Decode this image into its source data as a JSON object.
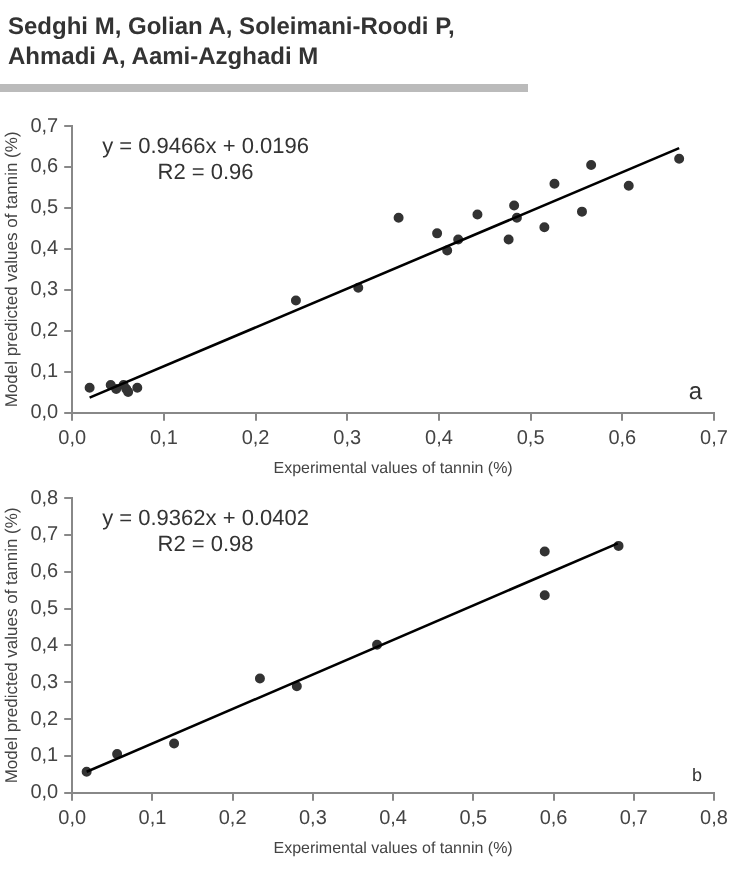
{
  "chart_data": [
    {
      "type": "scatter",
      "title": "Sedghi M, Golian A, Soleimani-Roodi P, Ahmadi A, Aami-Azghadi M",
      "xlabel": "Experimental values of tannin (%)",
      "ylabel": "Model predicted values of tannin (%)",
      "annotations": [
        "y = 0.9466x + 0.0196",
        "R2 = 0.96",
        "a"
      ],
      "grid": false,
      "legend": false,
      "xlim": [
        0,
        0.7
      ],
      "xticks": [
        {
          "value": 0,
          "label": "0,0"
        },
        {
          "value": 0.1,
          "label": "0,1"
        },
        {
          "value": 0.2,
          "label": "0,2"
        },
        {
          "value": 0.3,
          "label": "0,3"
        },
        {
          "value": 0.4,
          "label": "0,4"
        },
        {
          "value": 0.5,
          "label": "0,5"
        },
        {
          "value": 0.6,
          "label": "0,6"
        },
        {
          "value": 0.7,
          "label": "0,7"
        }
      ],
      "ylim": [
        0,
        0.7
      ],
      "yticks": [
        {
          "value": 0,
          "label": "0,0"
        },
        {
          "value": 0.1,
          "label": "0,1"
        },
        {
          "value": 0.2,
          "label": "0,2"
        },
        {
          "value": 0.3,
          "label": "0,3"
        },
        {
          "value": 0.4,
          "label": "0,4"
        },
        {
          "value": 0.5,
          "label": "0,5"
        },
        {
          "value": 0.6,
          "label": "0,6"
        },
        {
          "value": 0.7,
          "label": "0,7"
        }
      ],
      "series": [
        {
          "type": "scatter",
          "marker": "circle",
          "color": "#333333",
          "x": [
            0.019,
            0.042,
            0.048,
            0.056,
            0.059,
            0.061,
            0.071,
            0.244,
            0.312,
            0.356,
            0.398,
            0.409,
            0.421,
            0.442,
            0.476,
            0.482,
            0.485,
            0.515,
            0.526,
            0.556,
            0.566,
            0.607,
            0.662
          ],
          "values": [
            0.061,
            0.068,
            0.058,
            0.068,
            0.058,
            0.051,
            0.061,
            0.274,
            0.305,
            0.476,
            0.438,
            0.396,
            0.423,
            0.484,
            0.423,
            0.506,
            0.476,
            0.453,
            0.559,
            0.491,
            0.605,
            0.554,
            0.62
          ]
        },
        {
          "type": "line",
          "marker": "none",
          "color": "#000000",
          "x": [
            0.019,
            0.662
          ],
          "values": [
            0.037,
            0.646
          ]
        }
      ]
    },
    {
      "type": "scatter",
      "xlabel": "Experimental values of tannin (%)",
      "ylabel": "Model predicted values of tannin (%)",
      "annotations": [
        "y = 0.9362x + 0.0402",
        "R2 = 0.98",
        "b"
      ],
      "grid": false,
      "legend": false,
      "xlim": [
        0,
        0.8
      ],
      "xticks": [
        {
          "value": 0,
          "label": "0,0"
        },
        {
          "value": 0.1,
          "label": "0,1"
        },
        {
          "value": 0.2,
          "label": "0,2"
        },
        {
          "value": 0.3,
          "label": "0,3"
        },
        {
          "value": 0.4,
          "label": "0,4"
        },
        {
          "value": 0.5,
          "label": "0,5"
        },
        {
          "value": 0.6,
          "label": "0,6"
        },
        {
          "value": 0.7,
          "label": "0,7"
        },
        {
          "value": 0.8,
          "label": "0,8"
        }
      ],
      "ylim": [
        0,
        0.8
      ],
      "yticks": [
        {
          "value": 0,
          "label": "0,0"
        },
        {
          "value": 0.1,
          "label": "0,1"
        },
        {
          "value": 0.2,
          "label": "0,2"
        },
        {
          "value": 0.3,
          "label": "0,3"
        },
        {
          "value": 0.4,
          "label": "0,4"
        },
        {
          "value": 0.5,
          "label": "0,5"
        },
        {
          "value": 0.6,
          "label": "0,6"
        },
        {
          "value": 0.7,
          "label": "0,7"
        },
        {
          "value": 0.8,
          "label": "0,8"
        }
      ],
      "series": [
        {
          "type": "scatter",
          "marker": "circle",
          "color": "#333333",
          "x": [
            0.018,
            0.056,
            0.127,
            0.234,
            0.28,
            0.38,
            0.589,
            0.589,
            0.681
          ],
          "values": [
            0.057,
            0.105,
            0.134,
            0.31,
            0.289,
            0.402,
            0.655,
            0.536,
            0.67
          ]
        },
        {
          "type": "line",
          "marker": "none",
          "color": "#000000",
          "x": [
            0.018,
            0.68
          ],
          "values": [
            0.057,
            0.677
          ]
        }
      ]
    }
  ]
}
